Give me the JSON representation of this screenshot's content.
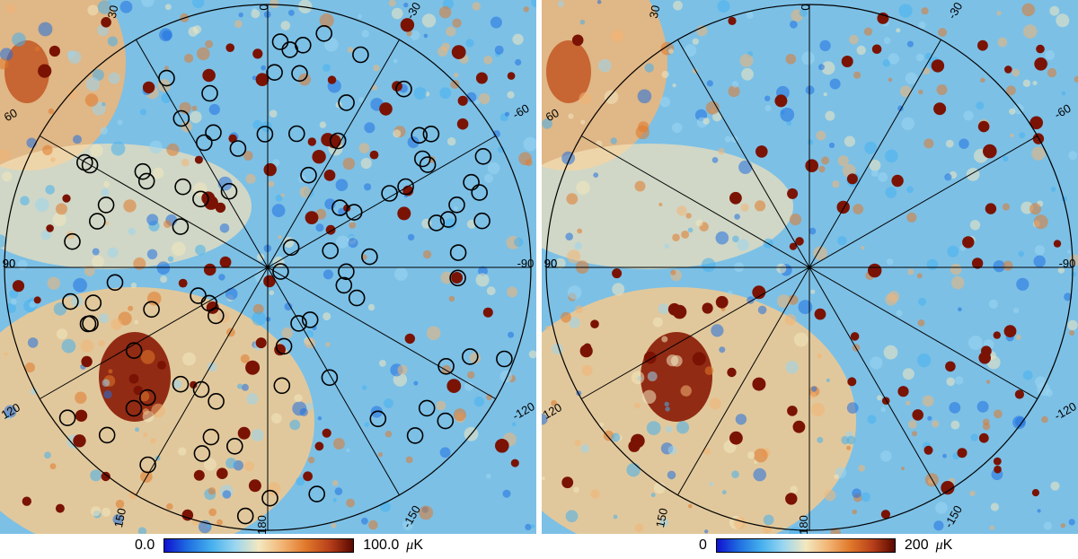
{
  "panels": [
    {
      "grid_labels": [
        "30",
        "0",
        "-30",
        "60",
        "-60",
        "90",
        "90",
        "-90",
        "120",
        "150",
        "180",
        "-150",
        "-120"
      ],
      "colorbar": {
        "min_label": "0.0",
        "max_label": "100.0",
        "unit_symbol": "μ",
        "unit": "K"
      },
      "has_source_circles": true
    },
    {
      "grid_labels": [
        "30",
        "0",
        "-30",
        "60",
        "-60",
        "90",
        "90",
        "-90",
        "120",
        "150",
        "180",
        "-150",
        "-120"
      ],
      "colorbar": {
        "min_label": "0",
        "max_label": "200",
        "unit_symbol": "μ",
        "unit": "K"
      },
      "has_source_circles": false
    }
  ],
  "colors": {
    "colormap": [
      "#1010d0",
      "#1f6fe0",
      "#46b0ee",
      "#9ad6f0",
      "#f3e8c0",
      "#f2b574",
      "#e0782a",
      "#b8401a",
      "#5a0800"
    ],
    "background": "#7cc0e6",
    "grid": "#000000",
    "circle": "#000000"
  }
}
